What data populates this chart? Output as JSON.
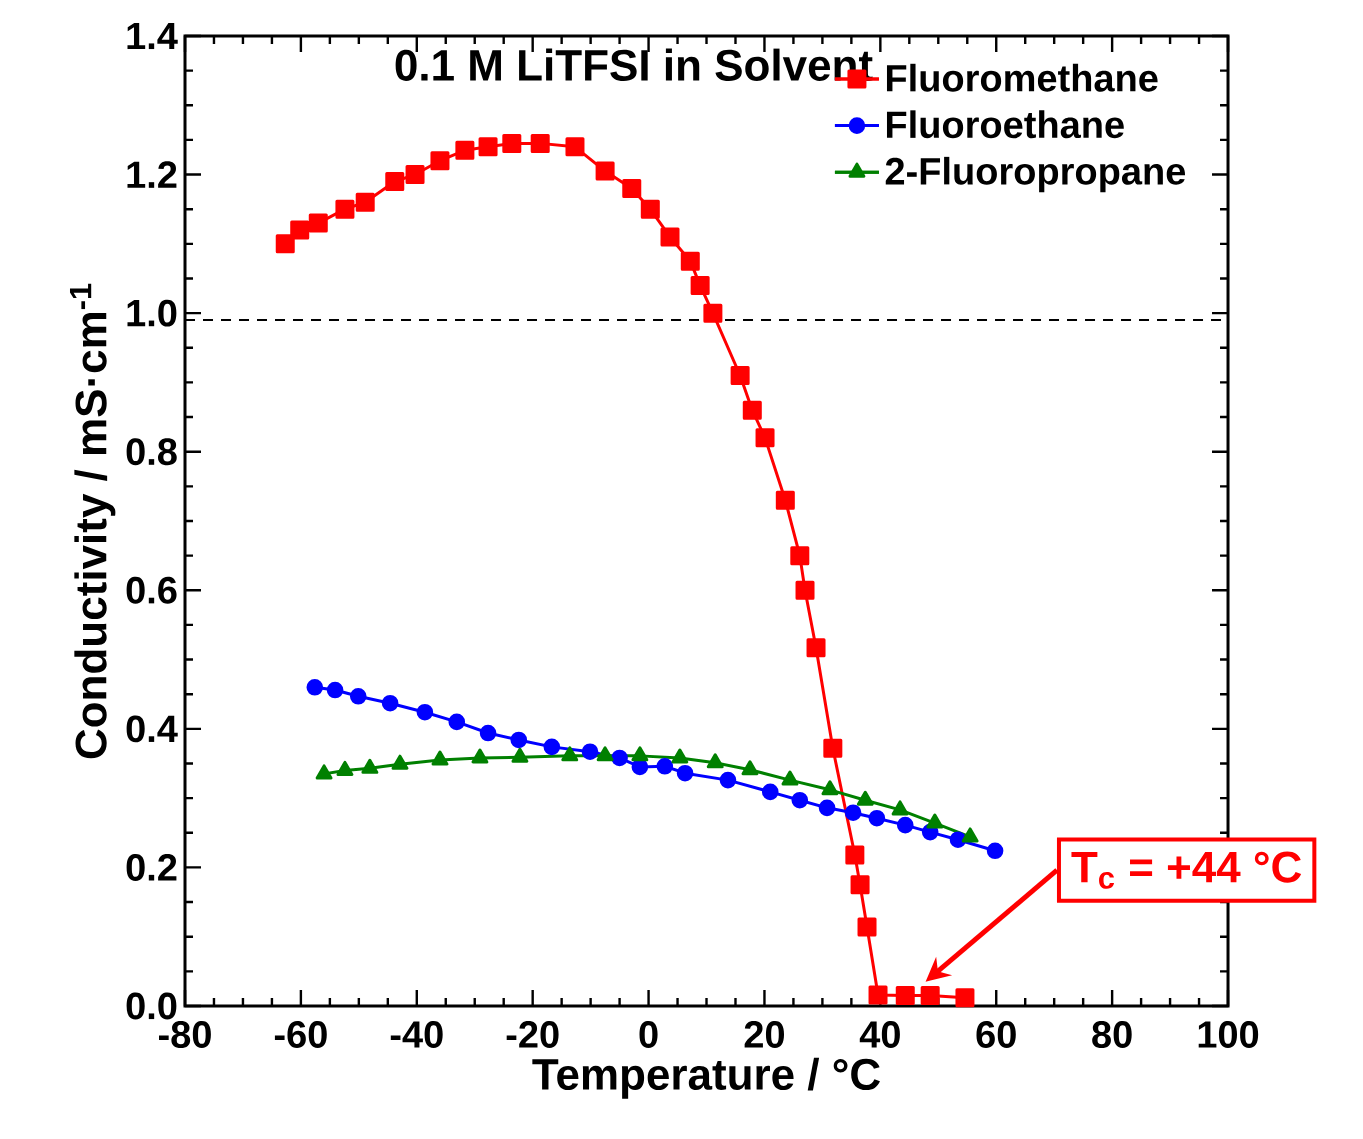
{
  "chart_data": {
    "type": "line",
    "title": "0.1 M LiTFSI in Solvent",
    "xlabel": "Temperature / °C",
    "ylabel": "Conductivity / mS·cm$^{-1}$",
    "xlim": [
      -80,
      100
    ],
    "ylim": [
      0.0,
      1.4
    ],
    "xticks": [
      -80,
      -60,
      -40,
      -20,
      0,
      20,
      40,
      60,
      80,
      100
    ],
    "yticks": [
      {
        "value": 0,
        "label": "0.0"
      },
      {
        "value": 0.2,
        "label": "0.2"
      },
      {
        "value": 0.4,
        "label": "0.4"
      },
      {
        "value": 0.6,
        "label": "0.6"
      },
      {
        "value": 0.8,
        "label": "0.8"
      },
      {
        "value": 1,
        "label": "1.0"
      },
      {
        "value": 1.2,
        "label": "1.2"
      },
      {
        "value": 1.4,
        "label": "1.4"
      }
    ],
    "grid": false,
    "legend": "top right",
    "ref_lines": [
      {
        "axis": "y",
        "value": 0.99,
        "color": "#000000",
        "line_style": "dashed"
      }
    ],
    "annotations": [
      "T$_{c}$ = +44 °C"
    ],
    "series": [
      {
        "name": "Fluoromethane",
        "color": "#ff0000",
        "marker": "square",
        "x": [
          -62.7,
          -60.2,
          -57.0,
          -52.4,
          -48.9,
          -43.8,
          -40.3,
          -36.0,
          -31.7,
          -27.7,
          -23.6,
          -18.7,
          -12.7,
          -7.5,
          -2.9,
          0.3,
          3.7,
          7.2,
          8.9,
          11.1,
          15.8,
          17.9,
          20.1,
          23.6,
          26.1,
          27.0,
          28.9,
          31.8,
          35.6,
          36.5,
          37.7,
          39.6,
          44.3,
          48.6,
          54.6
        ],
        "values": [
          1.1,
          1.12,
          1.13,
          1.15,
          1.16,
          1.19,
          1.2,
          1.22,
          1.235,
          1.24,
          1.245,
          1.245,
          1.24,
          1.205,
          1.18,
          1.15,
          1.11,
          1.075,
          1.04,
          1.0,
          0.91,
          0.86,
          0.82,
          0.73,
          0.65,
          0.6,
          0.517,
          0.372,
          0.218,
          0.175,
          0.114,
          0.016,
          0.015,
          0.015,
          0.012
        ]
      },
      {
        "name": "Fluoroethane",
        "color": "#0000ff",
        "marker": "circle",
        "x": [
          -57.6,
          -54.1,
          -50.1,
          -44.6,
          -38.6,
          -33.1,
          -27.7,
          -22.4,
          -16.7,
          -10.1,
          -5.0,
          -1.5,
          2.8,
          6.3,
          13.7,
          21.0,
          26.1,
          30.8,
          35.3,
          39.4,
          44.3,
          48.6,
          53.4,
          59.8
        ],
        "values": [
          0.46,
          0.456,
          0.447,
          0.437,
          0.424,
          0.41,
          0.394,
          0.384,
          0.374,
          0.367,
          0.358,
          0.345,
          0.346,
          0.336,
          0.326,
          0.309,
          0.297,
          0.286,
          0.279,
          0.271,
          0.261,
          0.251,
          0.24,
          0.224
        ]
      },
      {
        "name": "2-Fluoropropane",
        "color": "#008000",
        "marker": "triangle",
        "x": [
          -56.0,
          -52.4,
          -48.1,
          -42.9,
          -36.0,
          -29.1,
          -22.2,
          -13.6,
          -7.5,
          -1.5,
          5.4,
          11.5,
          17.5,
          24.4,
          31.3,
          37.4,
          43.4,
          49.4,
          55.5
        ],
        "values": [
          0.335,
          0.34,
          0.343,
          0.349,
          0.355,
          0.358,
          0.359,
          0.361,
          0.361,
          0.361,
          0.358,
          0.351,
          0.341,
          0.326,
          0.312,
          0.297,
          0.283,
          0.264,
          0.244
        ]
      }
    ]
  }
}
